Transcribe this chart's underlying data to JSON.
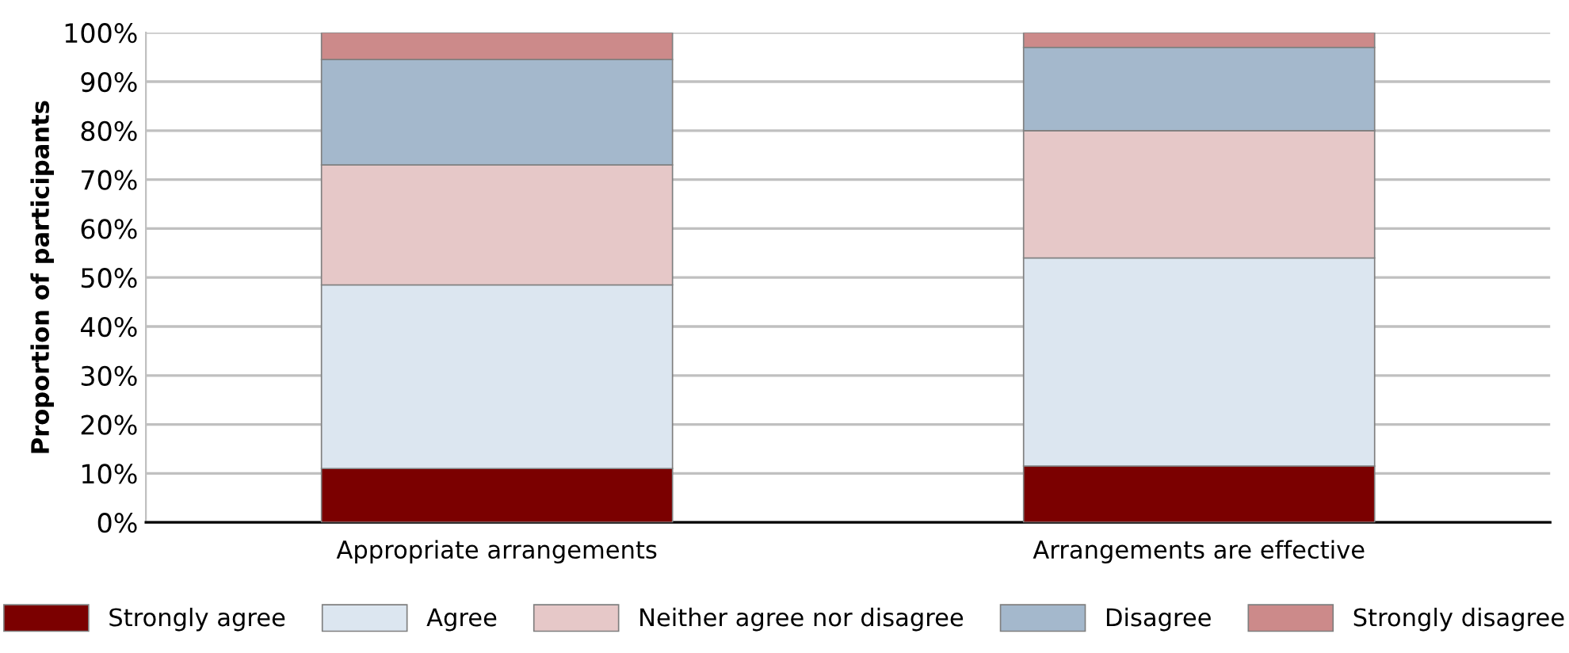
{
  "chart_data": {
    "type": "bar",
    "stacked": true,
    "ylabel": "Proportion of participants",
    "categories": [
      "Appropriate arrangements",
      "Arrangements are effective"
    ],
    "series": [
      {
        "name": "Strongly agree",
        "color": "#7b0000",
        "values": [
          11,
          11.5
        ]
      },
      {
        "name": "Agree",
        "color": "#dce6f0",
        "values": [
          37.5,
          42.5
        ]
      },
      {
        "name": "Neither agree nor disagree",
        "color": "#e6c8c8",
        "values": [
          24.5,
          26
        ]
      },
      {
        "name": "Disagree",
        "color": "#a4b8cc",
        "values": [
          21.5,
          17
        ]
      },
      {
        "name": "Strongly disagree",
        "color": "#cc8a8a",
        "values": [
          5.5,
          3
        ]
      }
    ],
    "ylim": [
      0,
      100
    ],
    "yticks": [
      {
        "value": 0,
        "label": "0%"
      },
      {
        "value": 10,
        "label": "10%"
      },
      {
        "value": 20,
        "label": "20%"
      },
      {
        "value": 30,
        "label": "30%"
      },
      {
        "value": 40,
        "label": "40%"
      },
      {
        "value": 50,
        "label": "50%"
      },
      {
        "value": 60,
        "label": "60%"
      },
      {
        "value": 70,
        "label": "70%"
      },
      {
        "value": 80,
        "label": "80%"
      },
      {
        "value": 90,
        "label": "90%"
      },
      {
        "value": 100,
        "label": "100%"
      }
    ],
    "grid": "y",
    "legend": "bottom"
  }
}
